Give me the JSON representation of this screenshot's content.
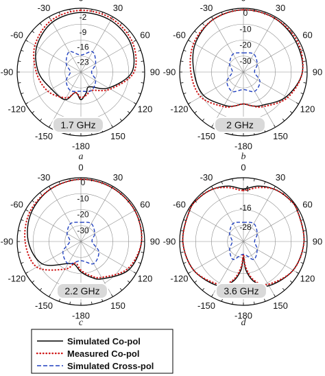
{
  "chart_data": [
    {
      "type": "polar",
      "panel_label": "a",
      "badge": "1.7 GHz",
      "angle_ticks": [
        0,
        30,
        60,
        90,
        120,
        150,
        -180,
        -150,
        -120,
        -90,
        -60,
        -30
      ],
      "angle_tick_labels": [
        "0",
        "30",
        "60",
        "90",
        "120",
        "150",
        "-180",
        "-150",
        "-120",
        "-90",
        "-60",
        "-30"
      ],
      "radial_ticks": [
        -2,
        -9,
        -16,
        -23
      ],
      "radial_tick_labels": [
        "-2",
        "-9",
        "-16",
        "-23"
      ],
      "r_range_db": [
        -30,
        0
      ],
      "series": [
        {
          "name": "Simulated Co-pol",
          "theta": [
            0,
            30,
            60,
            90,
            120,
            150,
            165,
            180,
            -165,
            -150,
            -120,
            -90,
            -60,
            -30
          ],
          "r": [
            -2,
            -2,
            -3,
            -6,
            -15,
            -22,
            -20,
            -17,
            -20,
            -15,
            -14,
            -10,
            -6,
            -3
          ]
        },
        {
          "name": "Measured Co-pol",
          "theta": [
            0,
            30,
            60,
            90,
            120,
            150,
            165,
            180,
            -165,
            -150,
            -120,
            -90,
            -60,
            -30
          ],
          "r": [
            -1,
            -1,
            -2,
            -5,
            -14,
            -20,
            -19,
            -18,
            -20,
            -16,
            -12,
            -9,
            -5,
            -2
          ]
        },
        {
          "name": "Simulated Cross-pol",
          "theta": [
            0,
            30,
            60,
            90,
            120,
            150,
            180,
            -150,
            -120,
            -90,
            -60,
            -30
          ],
          "r": [
            -22,
            -19,
            -22,
            -25,
            -22,
            -20,
            -21,
            -20,
            -22,
            -25,
            -22,
            -19
          ]
        }
      ]
    },
    {
      "type": "polar",
      "panel_label": "b",
      "badge": "2 GHz",
      "angle_ticks": [
        0,
        30,
        60,
        90,
        120,
        150,
        -180,
        -150,
        -120,
        -90,
        -60,
        -30
      ],
      "angle_tick_labels": [
        "0",
        "30",
        "60",
        "90",
        "120",
        "150",
        "-180",
        "-150",
        "-120",
        "-90",
        "-60",
        "-30"
      ],
      "radial_ticks": [
        0,
        -10,
        -20,
        -30
      ],
      "radial_tick_labels": [
        "0",
        "-10",
        "-20",
        "-30"
      ],
      "r_range_db": [
        -40,
        0
      ],
      "series": [
        {
          "name": "Simulated Co-pol",
          "theta": [
            0,
            30,
            60,
            90,
            120,
            150,
            165,
            180,
            -165,
            -150,
            -120,
            -90,
            -60,
            -30
          ],
          "r": [
            -1,
            -1,
            -2,
            -3,
            -9,
            -16,
            -18,
            -20,
            -18,
            -16,
            -11,
            -9,
            -5,
            -2
          ]
        },
        {
          "name": "Measured Co-pol",
          "theta": [
            0,
            30,
            60,
            90,
            120,
            150,
            165,
            180,
            -165,
            -150,
            -120,
            -90,
            -60,
            -30
          ],
          "r": [
            -1,
            -1,
            -1,
            -3,
            -8,
            -15,
            -18,
            -20,
            -18,
            -15,
            -9,
            -7,
            -4,
            -2
          ]
        },
        {
          "name": "Simulated Cross-pol",
          "theta": [
            0,
            30,
            60,
            90,
            120,
            150,
            180,
            -150,
            -120,
            -90,
            -60,
            -30
          ],
          "r": [
            -28,
            -27,
            -30,
            -33,
            -28,
            -26,
            -29,
            -26,
            -28,
            -33,
            -30,
            -27
          ]
        }
      ]
    },
    {
      "type": "polar",
      "panel_label": "c",
      "badge": "2.2 GHz",
      "angle_ticks": [
        0,
        30,
        60,
        90,
        120,
        150,
        -180,
        -150,
        -120,
        -90,
        -60,
        -30
      ],
      "angle_tick_labels": [
        "0",
        "30",
        "60",
        "90",
        "120",
        "150",
        "-180",
        "-150",
        "-120",
        "-90",
        "-60",
        "-30"
      ],
      "radial_ticks": [
        0,
        -10,
        -20,
        -30
      ],
      "radial_tick_labels": [
        "0",
        "-10",
        "-20",
        "-30"
      ],
      "r_range_db": [
        -40,
        0
      ],
      "series": [
        {
          "name": "Simulated Co-pol",
          "theta": [
            0,
            30,
            60,
            90,
            120,
            150,
            165,
            180,
            -165,
            -150,
            -120,
            -90,
            -60,
            -30
          ],
          "r": [
            -1,
            -1,
            -1,
            -2,
            -5,
            -13,
            -17,
            -21,
            -25,
            -24,
            -12,
            -7,
            -4,
            -2
          ]
        },
        {
          "name": "Measured Co-pol",
          "theta": [
            0,
            30,
            60,
            90,
            120,
            150,
            165,
            180,
            -165,
            -150,
            -120,
            -90,
            -60,
            -30
          ],
          "r": [
            -1,
            -1,
            -1,
            -2,
            -6,
            -14,
            -18,
            -22,
            -26,
            -20,
            -8,
            -5,
            -3,
            -2
          ]
        },
        {
          "name": "Simulated Cross-pol",
          "theta": [
            0,
            30,
            60,
            90,
            120,
            150,
            180,
            -150,
            -120,
            -90,
            -60,
            -30
          ],
          "r": [
            -28,
            -27,
            -30,
            -33,
            -27,
            -24,
            -28,
            -24,
            -27,
            -33,
            -30,
            -27
          ]
        }
      ]
    },
    {
      "type": "polar",
      "panel_label": "d",
      "badge": "3.6 GHz",
      "angle_ticks": [
        0,
        30,
        60,
        90,
        120,
        150,
        -180,
        -150,
        -120,
        -90,
        -60,
        -30
      ],
      "angle_tick_labels": [
        "0",
        "30",
        "60",
        "90",
        "120",
        "150",
        "-180",
        "-150",
        "-120",
        "-90",
        "-60",
        "-30"
      ],
      "radial_ticks": [
        -4,
        -16,
        -28
      ],
      "radial_tick_labels": [
        "-4",
        "-16",
        "-28"
      ],
      "r_range_db": [
        -40,
        0
      ],
      "series": [
        {
          "name": "Simulated Co-pol",
          "theta": [
            0,
            15,
            30,
            45,
            60,
            90,
            120,
            150,
            165,
            175,
            180,
            -175,
            -165,
            -150,
            -120,
            -90,
            -60,
            -45,
            -30,
            -15
          ],
          "r": [
            -7,
            -4,
            -2,
            -1,
            -1,
            -2,
            -4,
            -8,
            -14,
            -22,
            -30,
            -22,
            -14,
            -8,
            -4,
            -2,
            -1,
            -1,
            -2,
            -4
          ]
        },
        {
          "name": "Measured Co-pol",
          "theta": [
            0,
            15,
            30,
            45,
            60,
            90,
            120,
            150,
            165,
            175,
            180,
            -175,
            -165,
            -150,
            -120,
            -90,
            -60,
            -45,
            -30,
            -15
          ],
          "r": [
            -8,
            -5,
            -2,
            -1,
            -1,
            -2,
            -4,
            -9,
            -15,
            -24,
            -32,
            -24,
            -15,
            -9,
            -4,
            -2,
            -1,
            -1,
            -2,
            -5
          ]
        },
        {
          "name": "Simulated Cross-pol",
          "theta": [
            0,
            30,
            60,
            90,
            120,
            150,
            180,
            -150,
            -120,
            -90,
            -60,
            -30
          ],
          "r": [
            -28,
            -27,
            -30,
            -33,
            -30,
            -27,
            -32,
            -27,
            -30,
            -33,
            -30,
            -27
          ]
        }
      ]
    }
  ],
  "legend": {
    "items": [
      {
        "label": "Simulated Co-pol",
        "color": "#000000",
        "style": "solid"
      },
      {
        "label": "Measured Co-pol",
        "color": "#d01c1c",
        "style": "dotted"
      },
      {
        "label": "Simulated Cross-pol",
        "color": "#1f3fbf",
        "style": "dashed"
      }
    ]
  },
  "colors": {
    "sim_co": "#000000",
    "meas_co": "#d01c1c",
    "sim_cross": "#1f3fbf",
    "grid": "#8a8a8a",
    "badge_bg": "#d9d9d9"
  }
}
